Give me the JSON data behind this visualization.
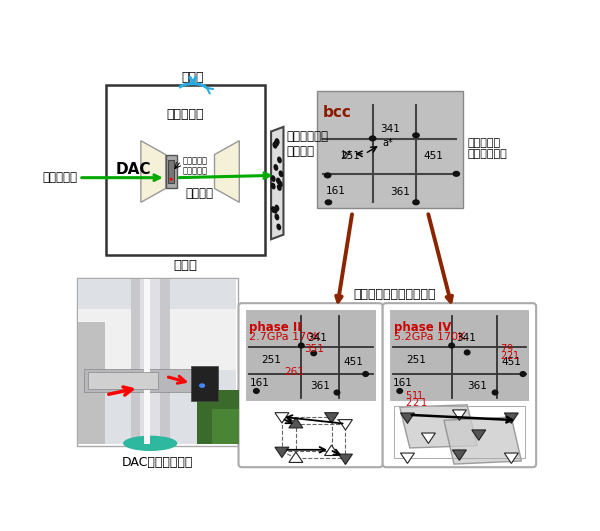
{
  "bg_color": "#ffffff",
  "cyan_color": "#29abe2",
  "green_color": "#00aa00",
  "dark_red_color": "#8B1A00",
  "red_color": "#cc0000",
  "brown_arrow_color": "#8B2500",
  "gray_diff": "#b8b8b8",
  "light_yellow": "#f5f0d8",
  "rotation_label": "回転軸",
  "sample_label": "試料単結晶",
  "ruby_label": "圧力測定用\nルビー結晶",
  "xray_in_label": "放射光Ｘ線",
  "xray_out_label": "回折Ｘ線",
  "imaging_label": "イメージング\nプレート",
  "cryo_label": "冷凍機",
  "dac_label": "DAC",
  "bcc_label": "bcc",
  "room_label": "常温常圧の\n回折パターン",
  "low_temp_label": "低温高圧の回折パターン",
  "phase2_label": "phase II",
  "phase2_cond": "2.7GPa 170K",
  "phase4_label": "phase IV",
  "phase4_cond": "5.2GPa 170K",
  "dac_photo_label": "DAC実験装置写真"
}
